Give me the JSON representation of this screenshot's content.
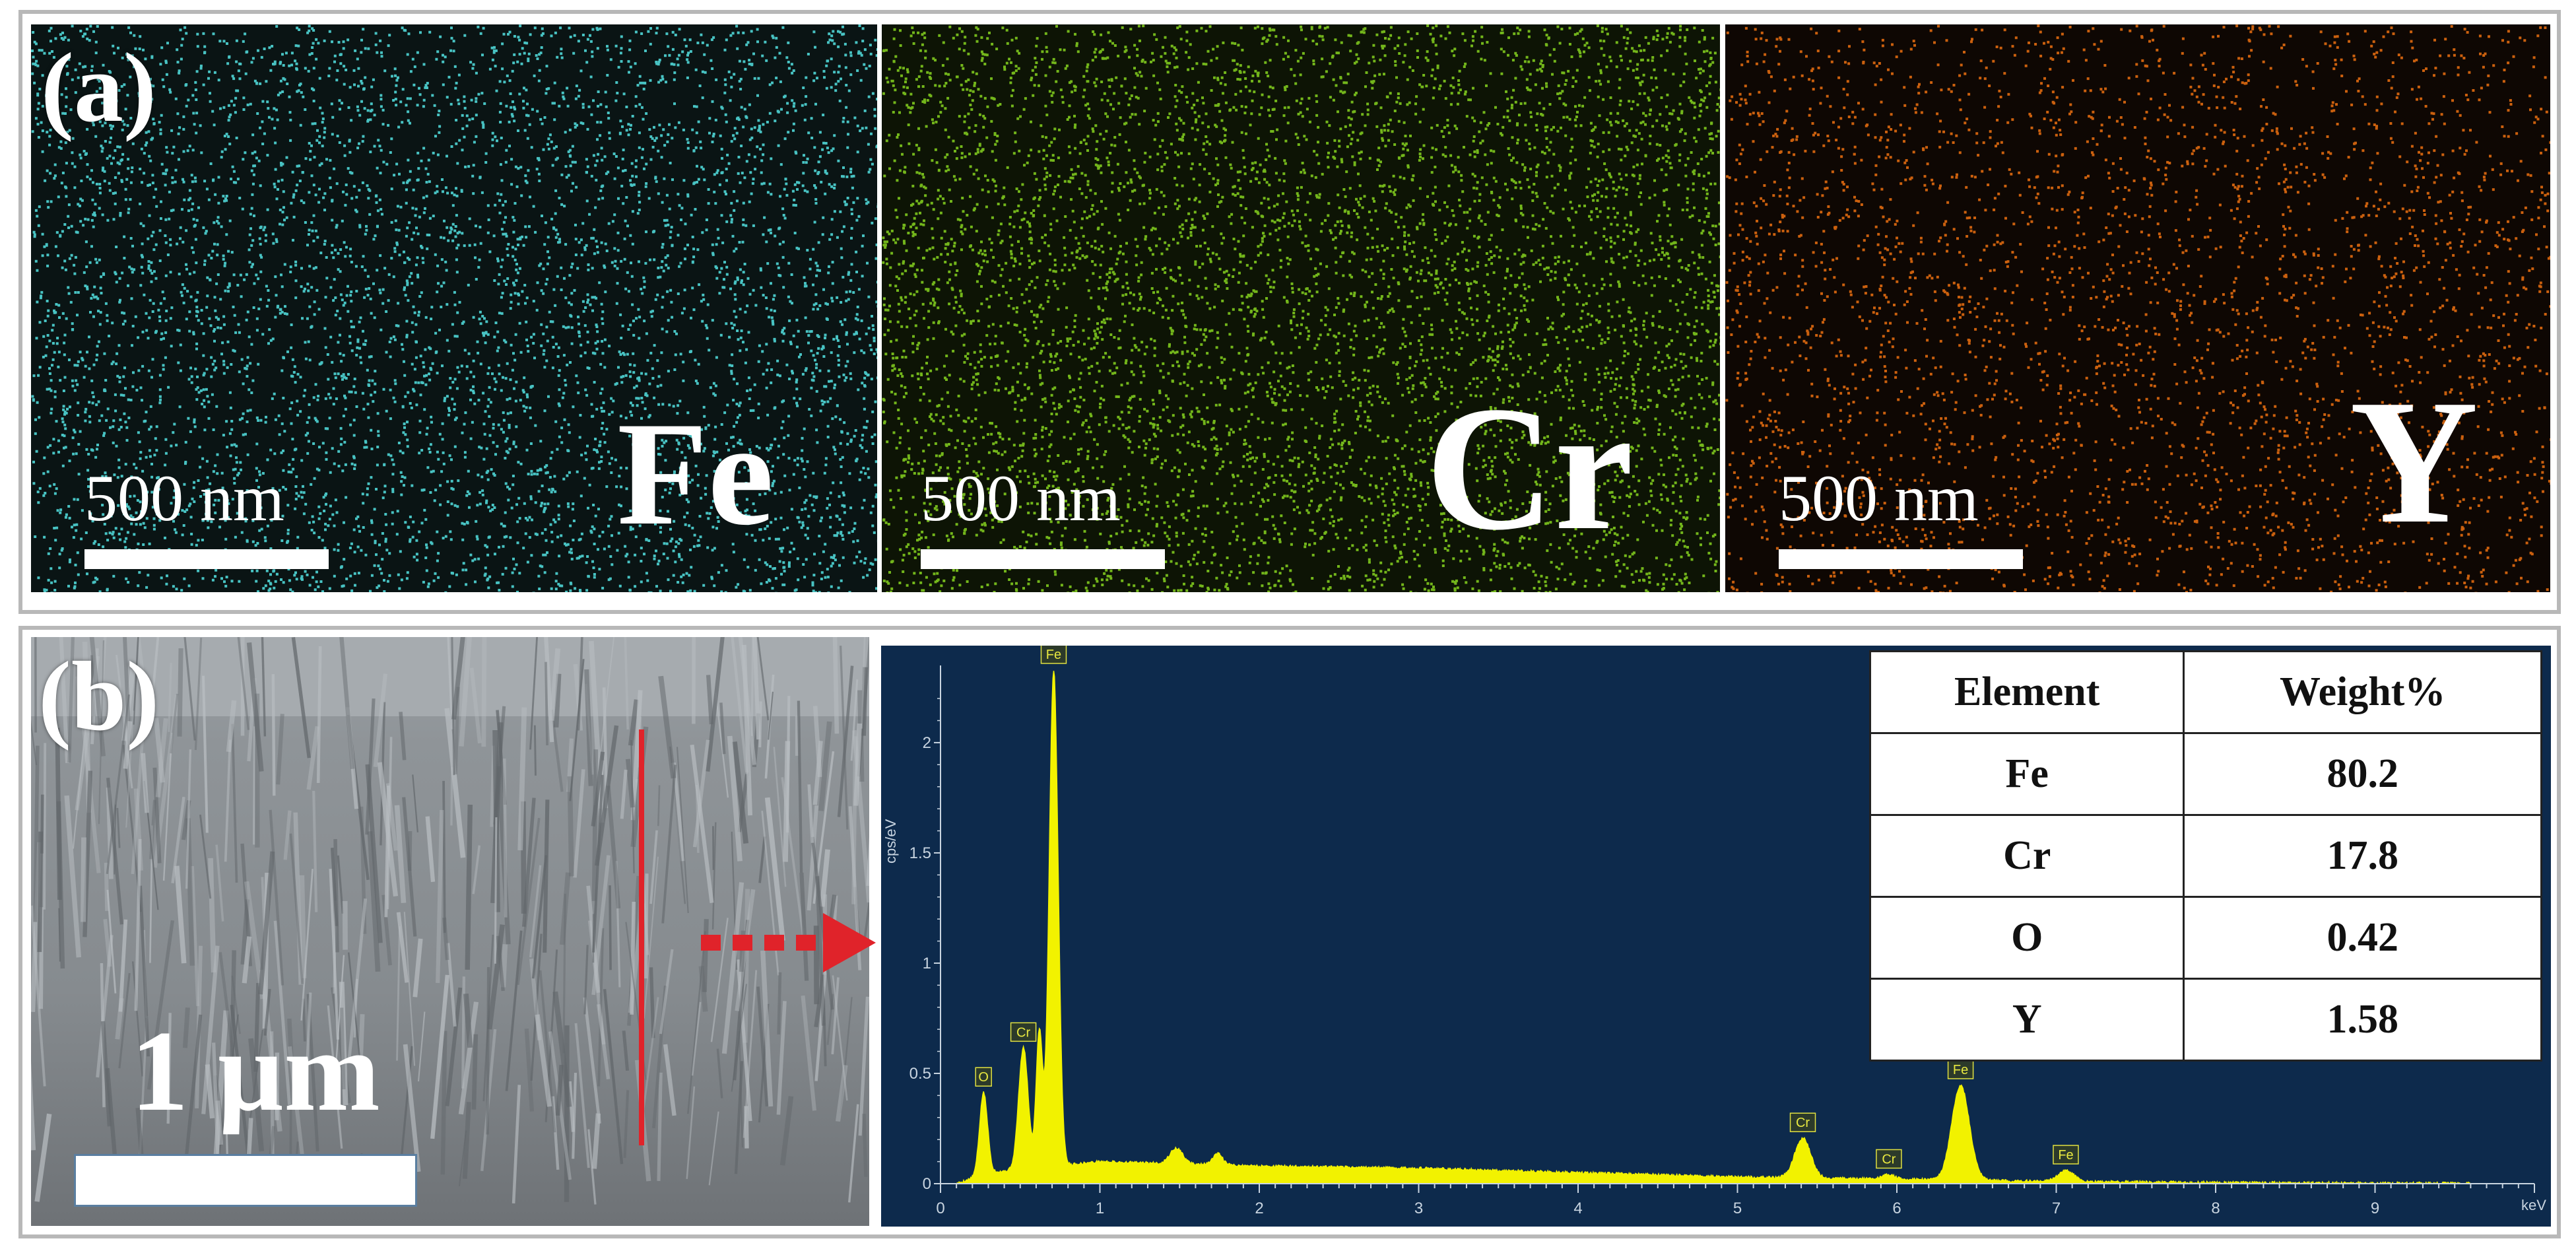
{
  "panel_a": {
    "letter": "(a)",
    "maps": [
      {
        "element": "Fe",
        "scale_label": "500 nm",
        "dot_color": "#4fd6d6",
        "bg_color": "#0a1414"
      },
      {
        "element": "Cr",
        "scale_label": "500 nm",
        "dot_color": "#7ec81e",
        "bg_color": "#0d1405"
      },
      {
        "element": "Y",
        "scale_label": "500 nm",
        "dot_color": "#e06a10",
        "bg_color": "#0e0703"
      }
    ]
  },
  "panel_b": {
    "letter": "(b)",
    "sem_scale_label": "1 µm",
    "line_color": "#e0232a",
    "arrow_color": "#e0232a"
  },
  "chart_data": {
    "type": "line",
    "title": "",
    "ylabel": "cps/eV",
    "xlabel": "keV",
    "xlim": [
      0,
      10
    ],
    "ylim": [
      0,
      2.35
    ],
    "x_ticks": [
      "0",
      "1",
      "2",
      "3",
      "4",
      "5",
      "6",
      "7",
      "8",
      "9"
    ],
    "y_ticks": [
      "0",
      "0.5",
      "1",
      "1.5",
      "2"
    ],
    "y_tick_values": [
      0,
      0.5,
      1,
      1.5,
      2
    ],
    "background": "#0d2a4c",
    "series_color": "#f2f200",
    "baseline": [
      [
        0.1,
        0.0
      ],
      [
        0.3,
        0.05
      ],
      [
        1.0,
        0.1
      ],
      [
        2.0,
        0.08
      ],
      [
        3.0,
        0.07
      ],
      [
        4.0,
        0.05
      ],
      [
        5.0,
        0.03
      ],
      [
        6.0,
        0.02
      ],
      [
        7.0,
        0.01
      ],
      [
        8.0,
        0.005
      ],
      [
        10.0,
        0.0
      ]
    ],
    "peaks": [
      {
        "label": "O",
        "x": 0.27,
        "height": 0.37,
        "width": 0.025,
        "show_label": true
      },
      {
        "label": "Cr",
        "x": 0.52,
        "height": 0.55,
        "width": 0.03,
        "show_label": true
      },
      {
        "label": "Y",
        "x": 0.62,
        "height": 0.62,
        "width": 0.02,
        "show_label": false
      },
      {
        "label": "Fe",
        "x": 0.71,
        "height": 2.25,
        "width": 0.028,
        "show_label": true
      },
      {
        "label": "",
        "x": 1.48,
        "height": 0.07,
        "width": 0.04,
        "show_label": false
      },
      {
        "label": "",
        "x": 1.74,
        "height": 0.05,
        "width": 0.03,
        "show_label": false
      },
      {
        "label": "Cr",
        "x": 5.41,
        "height": 0.18,
        "width": 0.05,
        "show_label": true
      },
      {
        "label": "Cr",
        "x": 5.95,
        "height": 0.02,
        "width": 0.04,
        "show_label": true
      },
      {
        "label": "Fe",
        "x": 6.4,
        "height": 0.43,
        "width": 0.055,
        "show_label": true
      },
      {
        "label": "Fe",
        "x": 7.06,
        "height": 0.05,
        "width": 0.05,
        "show_label": true
      }
    ],
    "peak_labels": [
      "O",
      "Cr",
      "Fe",
      "Cr",
      "Cr",
      "Fe",
      "Fe"
    ]
  },
  "table": {
    "headers": [
      "Element",
      "Weight%"
    ],
    "rows": [
      {
        "element": "Fe",
        "weight": "80.2"
      },
      {
        "element": "Cr",
        "weight": "17.8"
      },
      {
        "element": "O",
        "weight": "0.42"
      },
      {
        "element": "Y",
        "weight": "1.58"
      }
    ]
  }
}
